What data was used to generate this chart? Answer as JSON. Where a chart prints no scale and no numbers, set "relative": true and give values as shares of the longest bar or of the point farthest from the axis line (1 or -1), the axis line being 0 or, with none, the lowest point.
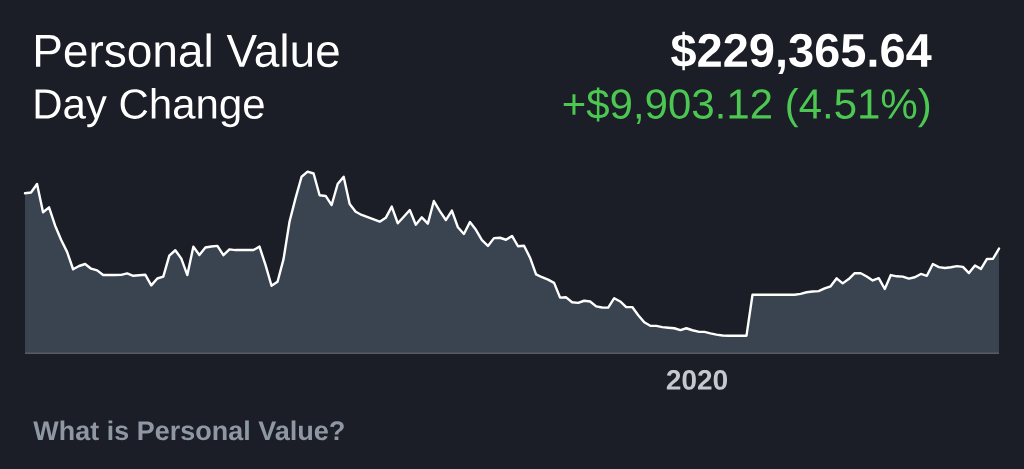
{
  "chart_data": {
    "type": "area",
    "title": "Personal Value",
    "subtitle": "Day Change",
    "annotations": [
      "$229,365.64",
      "+$9,903.12 (4.51%)",
      "2020",
      "What is Personal Value?"
    ],
    "categories": [
      null,
      null,
      null,
      null,
      null,
      null,
      null,
      null,
      null,
      null,
      null,
      null,
      null,
      null,
      null,
      null,
      null,
      null,
      null,
      null,
      null,
      null,
      null,
      null,
      null,
      null,
      null,
      null,
      null,
      null,
      null,
      null,
      null,
      null,
      null,
      null,
      null,
      null,
      null,
      null,
      null,
      null,
      null,
      null,
      null,
      null,
      null,
      null,
      null,
      null,
      null,
      null,
      null,
      null,
      null,
      null,
      null,
      null,
      null,
      null,
      null,
      null,
      null,
      null,
      null,
      null,
      null,
      null,
      null,
      null,
      null,
      null,
      null,
      null,
      null,
      null,
      null,
      null,
      null,
      null,
      null,
      null,
      null,
      null,
      null,
      null,
      null,
      null,
      null,
      null,
      null,
      null,
      null,
      null,
      null,
      null,
      null,
      null,
      null,
      null,
      null,
      null,
      null,
      null,
      null,
      null,
      null,
      null,
      null,
      null,
      null,
      null,
      null,
      null,
      null,
      null,
      null,
      null,
      null,
      null,
      null,
      null,
      null,
      null,
      null,
      null,
      null,
      null,
      null,
      null,
      null,
      null,
      null,
      null,
      null,
      null,
      null,
      null,
      null,
      null,
      null,
      null,
      null,
      null,
      null,
      null,
      null,
      null,
      null,
      null,
      null,
      null,
      null,
      null,
      null,
      null,
      null,
      null,
      null,
      null,
      null,
      null,
      null
    ],
    "values": [
      0.881,
      0.885,
      0.932,
      0.776,
      0.803,
      0.703,
      0.624,
      0.557,
      0.461,
      0.479,
      0.49,
      0.464,
      0.455,
      0.429,
      0.429,
      0.429,
      0.43,
      0.438,
      0.425,
      0.428,
      0.431,
      0.372,
      0.41,
      0.42,
      0.536,
      0.566,
      0.52,
      0.429,
      0.586,
      0.54,
      0.581,
      0.587,
      0.59,
      0.539,
      0.571,
      0.567,
      0.567,
      0.567,
      0.567,
      0.586,
      0.485,
      0.37,
      0.392,
      0.517,
      0.725,
      0.854,
      0.972,
      1.0,
      0.99,
      0.87,
      0.866,
      0.816,
      0.932,
      0.972,
      0.822,
      0.779,
      0.761,
      0.749,
      0.737,
      0.724,
      0.745,
      0.807,
      0.715,
      0.751,
      0.788,
      0.707,
      0.748,
      0.713,
      0.838,
      0.782,
      0.733,
      0.785,
      0.693,
      0.656,
      0.722,
      0.679,
      0.622,
      0.59,
      0.633,
      0.635,
      0.624,
      0.645,
      0.588,
      0.591,
      0.525,
      0.433,
      0.417,
      0.404,
      0.386,
      0.304,
      0.306,
      0.279,
      0.275,
      0.287,
      0.283,
      0.256,
      0.25,
      0.249,
      0.301,
      0.283,
      0.252,
      0.252,
      0.207,
      0.168,
      0.149,
      0.148,
      0.141,
      0.138,
      0.135,
      0.125,
      0.135,
      0.124,
      0.116,
      0.115,
      0.107,
      0.1,
      0.095,
      0.094,
      0.094,
      0.094,
      0.094,
      0.32,
      0.32,
      0.32,
      0.32,
      0.32,
      0.32,
      0.32,
      0.32,
      0.325,
      0.334,
      0.338,
      0.34,
      0.355,
      0.367,
      0.411,
      0.383,
      0.407,
      0.439,
      0.439,
      0.421,
      0.399,
      0.412,
      0.352,
      0.429,
      0.422,
      0.42,
      0.409,
      0.417,
      0.435,
      0.425,
      0.49,
      0.473,
      0.468,
      0.472,
      0.478,
      0.474,
      0.44,
      0.482,
      0.463,
      0.518,
      0.519,
      0.575
    ],
    "color": "#ffffff",
    "relative": true
  }
}
